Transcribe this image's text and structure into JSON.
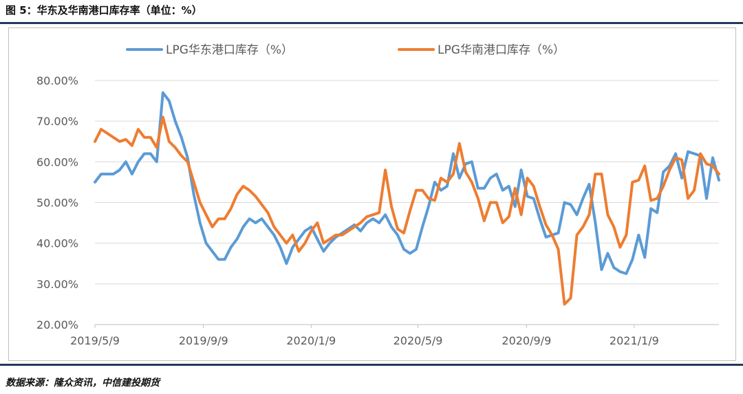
{
  "header": {
    "title": "图 5：华东及华南港口库存率（单位：%）"
  },
  "footer": {
    "source": "数据来源：隆众资讯，中信建投期货"
  },
  "chart_data": {
    "type": "line",
    "title": "",
    "xlabel": "",
    "ylabel": "",
    "ylim": [
      20,
      80
    ],
    "yticks": [
      20,
      30,
      40,
      50,
      60,
      70,
      80
    ],
    "ytick_labels": [
      "20.00%",
      "30.00%",
      "40.00%",
      "50.00%",
      "60.00%",
      "70.00%",
      "80.00%"
    ],
    "xticks": [
      "2019/5/9",
      "2019/9/9",
      "2020/1/9",
      "2020/5/9",
      "2020/9/9",
      "2021/1/9"
    ],
    "x_range": [
      "2019/5/9",
      "2021/4/15"
    ],
    "grid": "horizontal",
    "legend_position": "top",
    "series": [
      {
        "name": "LPG华东港口库存（%）",
        "color": "#5b9bd5",
        "points": [
          [
            "2019/5/9",
            55.0
          ],
          [
            "2019/5/16",
            57.0
          ],
          [
            "2019/5/23",
            57.0
          ],
          [
            "2019/5/30",
            57.0
          ],
          [
            "2019/6/6",
            58.0
          ],
          [
            "2019/6/13",
            60.0
          ],
          [
            "2019/6/20",
            57.0
          ],
          [
            "2019/6/27",
            60.0
          ],
          [
            "2019/7/4",
            62.0
          ],
          [
            "2019/7/11",
            62.0
          ],
          [
            "2019/7/18",
            60.0
          ],
          [
            "2019/7/25",
            77.0
          ],
          [
            "2019/8/1",
            75.0
          ],
          [
            "2019/8/8",
            70.0
          ],
          [
            "2019/8/15",
            66.0
          ],
          [
            "2019/8/22",
            61.0
          ],
          [
            "2019/8/29",
            52.0
          ],
          [
            "2019/9/5",
            45.0
          ],
          [
            "2019/9/12",
            40.0
          ],
          [
            "2019/9/19",
            38.0
          ],
          [
            "2019/9/26",
            36.0
          ],
          [
            "2019/10/3",
            36.0
          ],
          [
            "2019/10/10",
            39.0
          ],
          [
            "2019/10/17",
            41.0
          ],
          [
            "2019/10/24",
            44.0
          ],
          [
            "2019/10/31",
            46.0
          ],
          [
            "2019/11/7",
            45.0
          ],
          [
            "2019/11/14",
            46.0
          ],
          [
            "2019/11/21",
            44.0
          ],
          [
            "2019/11/28",
            42.0
          ],
          [
            "2019/12/5",
            39.0
          ],
          [
            "2019/12/12",
            35.0
          ],
          [
            "2019/12/19",
            39.0
          ],
          [
            "2019/12/26",
            41.0
          ],
          [
            "2020/1/2",
            43.0
          ],
          [
            "2020/1/9",
            44.0
          ],
          [
            "2020/1/16",
            41.0
          ],
          [
            "2020/1/23",
            38.0
          ],
          [
            "2020/1/30",
            40.0
          ],
          [
            "2020/2/6",
            41.5
          ],
          [
            "2020/2/13",
            42.5
          ],
          [
            "2020/2/20",
            43.5
          ],
          [
            "2020/2/27",
            44.5
          ],
          [
            "2020/3/5",
            43.0
          ],
          [
            "2020/3/12",
            45.0
          ],
          [
            "2020/3/19",
            46.0
          ],
          [
            "2020/3/26",
            45.0
          ],
          [
            "2020/4/2",
            47.0
          ],
          [
            "2020/4/9",
            44.0
          ],
          [
            "2020/4/16",
            42.0
          ],
          [
            "2020/4/23",
            38.5
          ],
          [
            "2020/4/30",
            37.5
          ],
          [
            "2020/5/7",
            38.5
          ],
          [
            "2020/5/14",
            44.0
          ],
          [
            "2020/5/21",
            49.0
          ],
          [
            "2020/5/28",
            55.0
          ],
          [
            "2020/6/4",
            53.0
          ],
          [
            "2020/6/11",
            54.0
          ],
          [
            "2020/6/18",
            62.0
          ],
          [
            "2020/6/25",
            56.0
          ],
          [
            "2020/7/2",
            59.5
          ],
          [
            "2020/7/9",
            60.0
          ],
          [
            "2020/7/16",
            53.5
          ],
          [
            "2020/7/23",
            53.5
          ],
          [
            "2020/7/30",
            56.0
          ],
          [
            "2020/8/6",
            57.0
          ],
          [
            "2020/8/13",
            53.0
          ],
          [
            "2020/8/20",
            54.0
          ],
          [
            "2020/8/27",
            49.0
          ],
          [
            "2020/9/3",
            58.0
          ],
          [
            "2020/9/10",
            51.5
          ],
          [
            "2020/9/17",
            51.0
          ],
          [
            "2020/9/24",
            46.0
          ],
          [
            "2020/10/1",
            41.5
          ],
          [
            "2020/10/8",
            42.0
          ],
          [
            "2020/10/15",
            42.5
          ],
          [
            "2020/10/22",
            50.0
          ],
          [
            "2020/10/29",
            49.5
          ],
          [
            "2020/11/5",
            47.0
          ],
          [
            "2020/11/12",
            51.0
          ],
          [
            "2020/11/19",
            54.5
          ],
          [
            "2020/11/26",
            45.0
          ],
          [
            "2020/12/3",
            33.5
          ],
          [
            "2020/12/10",
            37.5
          ],
          [
            "2020/12/17",
            34.0
          ],
          [
            "2020/12/24",
            33.0
          ],
          [
            "2020/12/31",
            32.5
          ],
          [
            "2021/1/7",
            36.0
          ],
          [
            "2021/1/14",
            42.0
          ],
          [
            "2021/1/21",
            36.5
          ],
          [
            "2021/1/28",
            48.5
          ],
          [
            "2021/2/4",
            47.5
          ],
          [
            "2021/2/11",
            57.5
          ],
          [
            "2021/2/18",
            59.0
          ],
          [
            "2021/2/25",
            62.0
          ],
          [
            "2021/3/4",
            56.0
          ],
          [
            "2021/3/11",
            62.5
          ],
          [
            "2021/3/18",
            62.0
          ],
          [
            "2021/3/25",
            61.5
          ],
          [
            "2021/4/1",
            51.0
          ],
          [
            "2021/4/8",
            61.0
          ],
          [
            "2021/4/15",
            55.5
          ]
        ]
      },
      {
        "name": "LPG华南港口库存（%）",
        "color": "#ed7d31",
        "points": [
          [
            "2019/5/9",
            65.0
          ],
          [
            "2019/5/16",
            68.0
          ],
          [
            "2019/5/23",
            67.0
          ],
          [
            "2019/5/30",
            66.0
          ],
          [
            "2019/6/6",
            65.0
          ],
          [
            "2019/6/13",
            65.5
          ],
          [
            "2019/6/20",
            64.0
          ],
          [
            "2019/6/27",
            68.0
          ],
          [
            "2019/7/4",
            66.0
          ],
          [
            "2019/7/11",
            66.0
          ],
          [
            "2019/7/18",
            63.5
          ],
          [
            "2019/7/25",
            71.0
          ],
          [
            "2019/8/1",
            65.0
          ],
          [
            "2019/8/8",
            63.5
          ],
          [
            "2019/8/15",
            61.5
          ],
          [
            "2019/8/22",
            60.0
          ],
          [
            "2019/8/29",
            55.0
          ],
          [
            "2019/9/5",
            50.0
          ],
          [
            "2019/9/12",
            47.0
          ],
          [
            "2019/9/19",
            44.0
          ],
          [
            "2019/9/26",
            46.0
          ],
          [
            "2019/10/3",
            46.0
          ],
          [
            "2019/10/10",
            48.5
          ],
          [
            "2019/10/17",
            52.0
          ],
          [
            "2019/10/24",
            54.0
          ],
          [
            "2019/10/31",
            53.0
          ],
          [
            "2019/11/7",
            51.5
          ],
          [
            "2019/11/14",
            49.5
          ],
          [
            "2019/11/21",
            47.5
          ],
          [
            "2019/11/28",
            44.0
          ],
          [
            "2019/12/5",
            42.0
          ],
          [
            "2019/12/12",
            40.0
          ],
          [
            "2019/12/19",
            42.0
          ],
          [
            "2019/12/26",
            38.0
          ],
          [
            "2020/1/2",
            40.0
          ],
          [
            "2020/1/9",
            43.0
          ],
          [
            "2020/1/16",
            45.0
          ],
          [
            "2020/1/23",
            40.0
          ],
          [
            "2020/1/30",
            41.0
          ],
          [
            "2020/2/6",
            42.0
          ],
          [
            "2020/2/13",
            42.0
          ],
          [
            "2020/2/20",
            43.0
          ],
          [
            "2020/2/27",
            44.0
          ],
          [
            "2020/3/5",
            45.0
          ],
          [
            "2020/3/12",
            46.5
          ],
          [
            "2020/3/19",
            47.0
          ],
          [
            "2020/3/26",
            47.5
          ],
          [
            "2020/4/2",
            58.0
          ],
          [
            "2020/4/9",
            49.0
          ],
          [
            "2020/4/16",
            43.5
          ],
          [
            "2020/4/23",
            42.5
          ],
          [
            "2020/4/30",
            48.0
          ],
          [
            "2020/5/7",
            53.0
          ],
          [
            "2020/5/14",
            53.0
          ],
          [
            "2020/5/21",
            51.0
          ],
          [
            "2020/5/28",
            50.5
          ],
          [
            "2020/6/4",
            56.0
          ],
          [
            "2020/6/11",
            55.0
          ],
          [
            "2020/6/18",
            57.0
          ],
          [
            "2020/6/25",
            64.5
          ],
          [
            "2020/7/2",
            57.5
          ],
          [
            "2020/7/9",
            55.0
          ],
          [
            "2020/7/16",
            51.0
          ],
          [
            "2020/7/23",
            45.5
          ],
          [
            "2020/7/30",
            50.0
          ],
          [
            "2020/8/6",
            50.0
          ],
          [
            "2020/8/13",
            45.0
          ],
          [
            "2020/8/20",
            46.5
          ],
          [
            "2020/8/27",
            53.5
          ],
          [
            "2020/9/3",
            47.0
          ],
          [
            "2020/9/10",
            56.0
          ],
          [
            "2020/9/17",
            54.0
          ],
          [
            "2020/9/24",
            49.0
          ],
          [
            "2020/10/1",
            44.5
          ],
          [
            "2020/10/8",
            42.0
          ],
          [
            "2020/10/15",
            38.5
          ],
          [
            "2020/10/22",
            25.0
          ],
          [
            "2020/10/29",
            26.5
          ],
          [
            "2020/11/5",
            42.0
          ],
          [
            "2020/11/12",
            44.0
          ],
          [
            "2020/11/19",
            47.0
          ],
          [
            "2020/11/26",
            57.0
          ],
          [
            "2020/12/3",
            57.0
          ],
          [
            "2020/12/10",
            47.0
          ],
          [
            "2020/12/17",
            44.0
          ],
          [
            "2020/12/24",
            39.0
          ],
          [
            "2020/12/31",
            42.0
          ],
          [
            "2021/1/7",
            55.0
          ],
          [
            "2021/1/14",
            55.5
          ],
          [
            "2021/1/21",
            59.0
          ],
          [
            "2021/1/28",
            50.5
          ],
          [
            "2021/2/4",
            51.0
          ],
          [
            "2021/2/11",
            54.0
          ],
          [
            "2021/2/18",
            58.0
          ],
          [
            "2021/2/25",
            61.0
          ],
          [
            "2021/3/4",
            60.5
          ],
          [
            "2021/3/11",
            51.0
          ],
          [
            "2021/3/18",
            53.0
          ],
          [
            "2021/3/25",
            62.0
          ],
          [
            "2021/4/1",
            59.5
          ],
          [
            "2021/4/8",
            59.0
          ],
          [
            "2021/4/15",
            57.0
          ]
        ]
      }
    ]
  }
}
